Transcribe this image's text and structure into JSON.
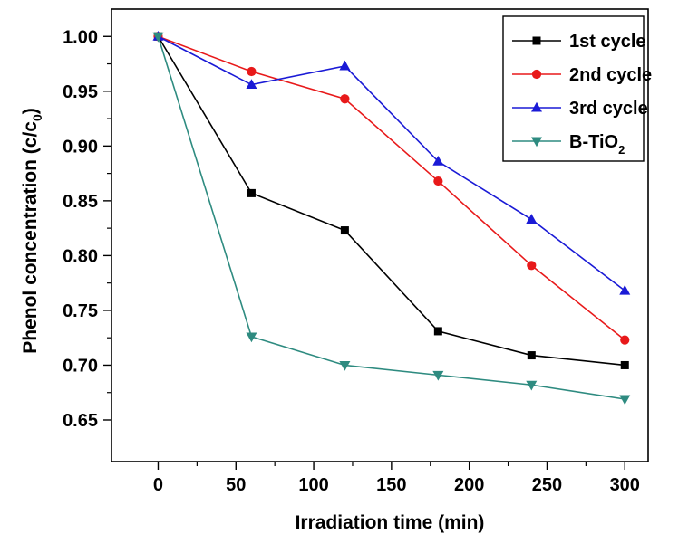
{
  "chart_data": {
    "type": "line",
    "title": "",
    "xlabel": "Irradiation time (min)",
    "ylabel": {
      "main": "Phenol concentration (c/c",
      "sub": "0",
      "close": ")"
    },
    "x": [
      0,
      60,
      120,
      180,
      240,
      300
    ],
    "xlim": [
      -30,
      315
    ],
    "ylim": [
      0.612,
      1.025
    ],
    "x_ticks": [
      "0",
      "50",
      "100",
      "150",
      "200",
      "250",
      "300"
    ],
    "x_tick_values": [
      0,
      50,
      100,
      150,
      200,
      250,
      300
    ],
    "y_ticks": [
      "0.65",
      "0.70",
      "0.75",
      "0.80",
      "0.85",
      "0.90",
      "0.95",
      "1.00"
    ],
    "y_tick_values": [
      0.65,
      0.7,
      0.75,
      0.8,
      0.85,
      0.9,
      0.95,
      1.0
    ],
    "grid": false,
    "legend_position": "top-right",
    "series": [
      {
        "name": "1st cycle",
        "color": "#000000",
        "marker": "square",
        "values": [
          1.0,
          0.857,
          0.823,
          0.731,
          0.709,
          0.7
        ]
      },
      {
        "name": "2nd cycle",
        "color": "#e8191a",
        "marker": "circle",
        "values": [
          1.0,
          0.968,
          0.943,
          0.868,
          0.791,
          0.723
        ]
      },
      {
        "name": "3rd cycle",
        "color": "#1a1ad6",
        "marker": "triangle-up",
        "values": [
          1.0,
          0.956,
          0.973,
          0.886,
          0.833,
          0.768
        ]
      },
      {
        "name": "B-TiO",
        "name_sub": "2",
        "color": "#2e8b80",
        "marker": "triangle-down",
        "values": [
          1.0,
          0.726,
          0.7,
          0.691,
          0.682,
          0.669
        ]
      }
    ]
  }
}
